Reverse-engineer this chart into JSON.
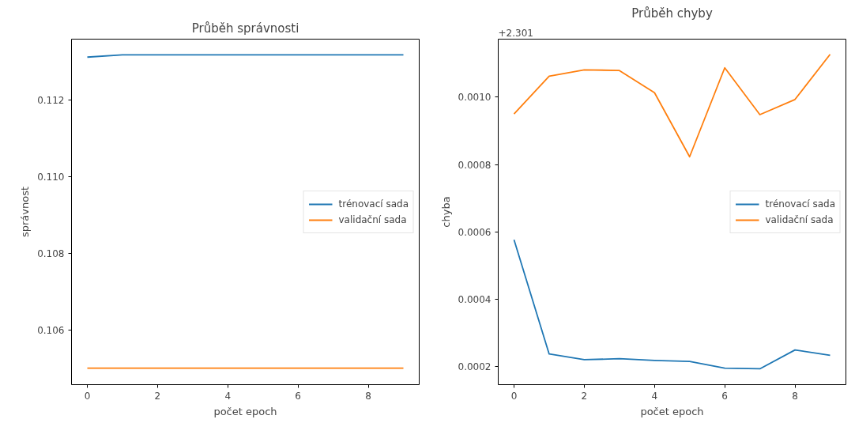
{
  "chart_data": [
    {
      "type": "line",
      "title": "Průběh správnosti",
      "xlabel": "počet epoch",
      "ylabel": "správnost",
      "x": [
        0,
        1,
        2,
        3,
        4,
        5,
        6,
        7,
        8,
        9
      ],
      "series": [
        {
          "name": "trénovací sada",
          "color": "#1f77b4",
          "values": [
            0.11313,
            0.11319,
            0.11319,
            0.11319,
            0.11319,
            0.11319,
            0.11319,
            0.11319,
            0.11319,
            0.11319
          ]
        },
        {
          "name": "validační sada",
          "color": "#ff7f0e",
          "values": [
            0.105,
            0.105,
            0.105,
            0.105,
            0.105,
            0.105,
            0.105,
            0.105,
            0.105,
            0.105
          ]
        }
      ],
      "xlim": [
        -0.45,
        9.45
      ],
      "xticks": [
        0,
        2,
        4,
        6,
        8
      ],
      "ylim": [
        0.10457,
        0.1136
      ],
      "yticks": [
        0.106,
        0.108,
        {
          "value": 0.11,
          "label": "0.110"
        },
        0.112
      ],
      "grid": false,
      "legend": "right",
      "line_style": "solid",
      "marker": "none"
    },
    {
      "type": "line",
      "title": "Průběh chyby",
      "xlabel": "počet epoch",
      "ylabel": "chyba",
      "annotations": [
        "+2.301"
      ],
      "x": [
        0,
        1,
        2,
        3,
        4,
        5,
        6,
        7,
        8,
        9
      ],
      "series": [
        {
          "name": "trénovací sada",
          "color": "#1f77b4",
          "values": [
            0.000577,
            0.000238,
            0.000221,
            0.000224,
            0.000219,
            0.000216,
            0.000196,
            0.000194,
            0.00025,
            0.000234
          ]
        },
        {
          "name": "validační sada",
          "color": "#ff7f0e",
          "values": [
            0.00095,
            0.001062,
            0.001081,
            0.001079,
            0.001013,
            0.000823,
            0.001087,
            0.000948,
            0.000993,
            0.001127
          ]
        }
      ],
      "xlim": [
        -0.45,
        9.45
      ],
      "xticks": [
        0,
        2,
        4,
        6,
        8
      ],
      "ylim": [
        0.000147,
        0.001172
      ],
      "yticks": [
        {
          "value": 0.0002,
          "label": "0.0002"
        },
        {
          "value": 0.0004,
          "label": "0.0004"
        },
        {
          "value": 0.0006,
          "label": "0.0006"
        },
        {
          "value": 0.0008,
          "label": "0.0008"
        },
        {
          "value": 0.001,
          "label": "0.0010"
        }
      ],
      "grid": false,
      "legend": "right",
      "line_style": "solid",
      "marker": "none"
    }
  ]
}
